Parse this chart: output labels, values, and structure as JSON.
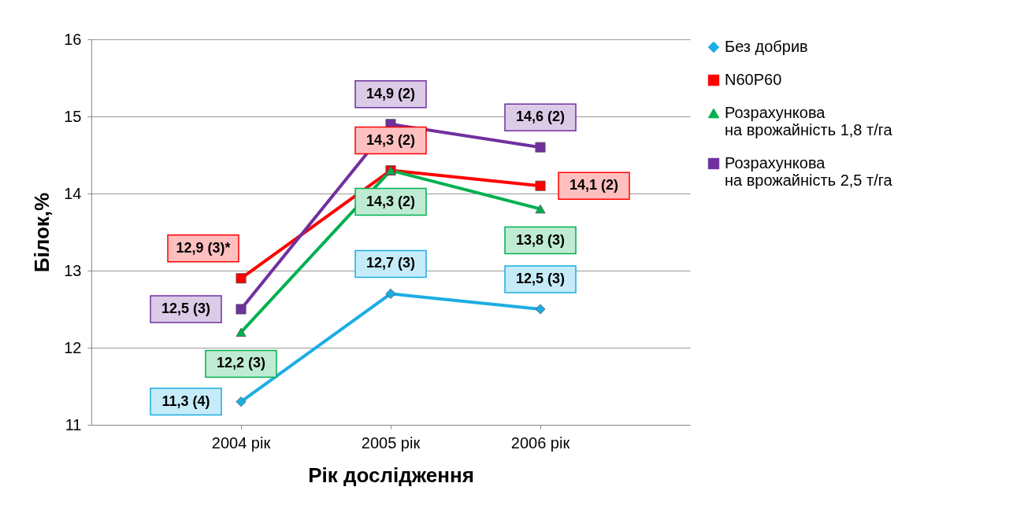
{
  "chart_data": {
    "type": "line",
    "xlabel": "Рік дослідження",
    "ylabel": "Білок,%",
    "categories": [
      "2004 рік",
      "2005 рік",
      "2006 рік"
    ],
    "ylim": [
      11,
      16
    ],
    "yticks": [
      11,
      12,
      13,
      14,
      15,
      16
    ],
    "grid": "y",
    "legend": "right",
    "line_style": "solid",
    "series": [
      {
        "name": "Без добрив",
        "color": "#1cade4",
        "marker": "diamond",
        "values": [
          11.3,
          12.7,
          12.5
        ],
        "value_labels": [
          "11,3 (4)",
          "12,7 (3)",
          "12,5 (3)"
        ]
      },
      {
        "name": "N60P60",
        "color": "#ff0000",
        "marker": "square",
        "values": [
          12.9,
          14.3,
          14.1
        ],
        "value_labels": [
          "12,9 (3)*",
          "14,3 (2)",
          "14,1 (2)"
        ]
      },
      {
        "name": "Розрахункова на врожайність 1,8 т/га",
        "color": "#00b050",
        "marker": "triangle",
        "values": [
          12.2,
          14.3,
          13.8
        ],
        "value_labels": [
          "12,2 (3)",
          "14,3 (2)",
          "13,8 (3)"
        ]
      },
      {
        "name": "Розрахункова на врожайність 2,5 т/га",
        "color": "#7030a0",
        "marker": "square",
        "values": [
          12.5,
          14.9,
          14.6
        ],
        "value_labels": [
          "12,5 (3)",
          "14,9 (2)",
          "14,6 (2)"
        ]
      }
    ]
  }
}
